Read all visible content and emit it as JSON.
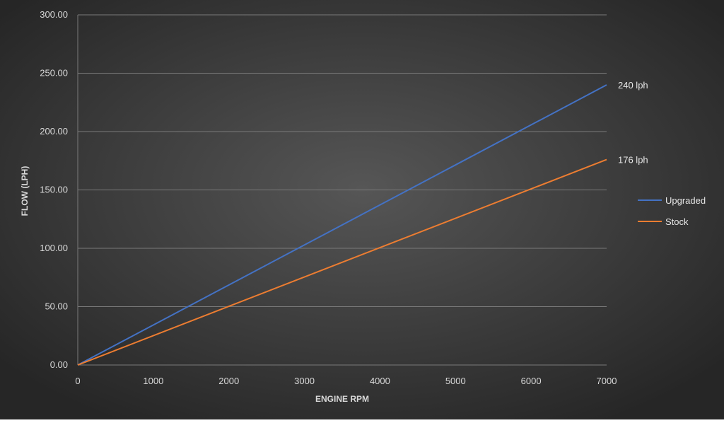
{
  "chart_data": {
    "type": "line",
    "title": "",
    "xlabel": "ENGINE RPM",
    "ylabel": "FLOW (LPH)",
    "xlim": [
      0,
      7000
    ],
    "ylim": [
      0,
      300
    ],
    "x_ticks": [
      "0",
      "1000",
      "2000",
      "3000",
      "4000",
      "5000",
      "6000",
      "7000"
    ],
    "y_ticks": [
      "0.00",
      "50.00",
      "100.00",
      "150.00",
      "200.00",
      "250.00",
      "300.00"
    ],
    "grid": "horizontal",
    "legend_position": "right",
    "series": [
      {
        "name": "Upgraded",
        "color": "#4472c4",
        "x": [
          0,
          7000
        ],
        "y": [
          0,
          240
        ],
        "end_label": "240 lph"
      },
      {
        "name": "Stock",
        "color": "#ed7d31",
        "x": [
          0,
          7000
        ],
        "y": [
          0,
          176
        ],
        "end_label": "176 lph"
      }
    ],
    "colors": {
      "background_outer": "#2a2a2a",
      "background_inner": "#505050",
      "gridline": "#7a7a7a"
    }
  }
}
